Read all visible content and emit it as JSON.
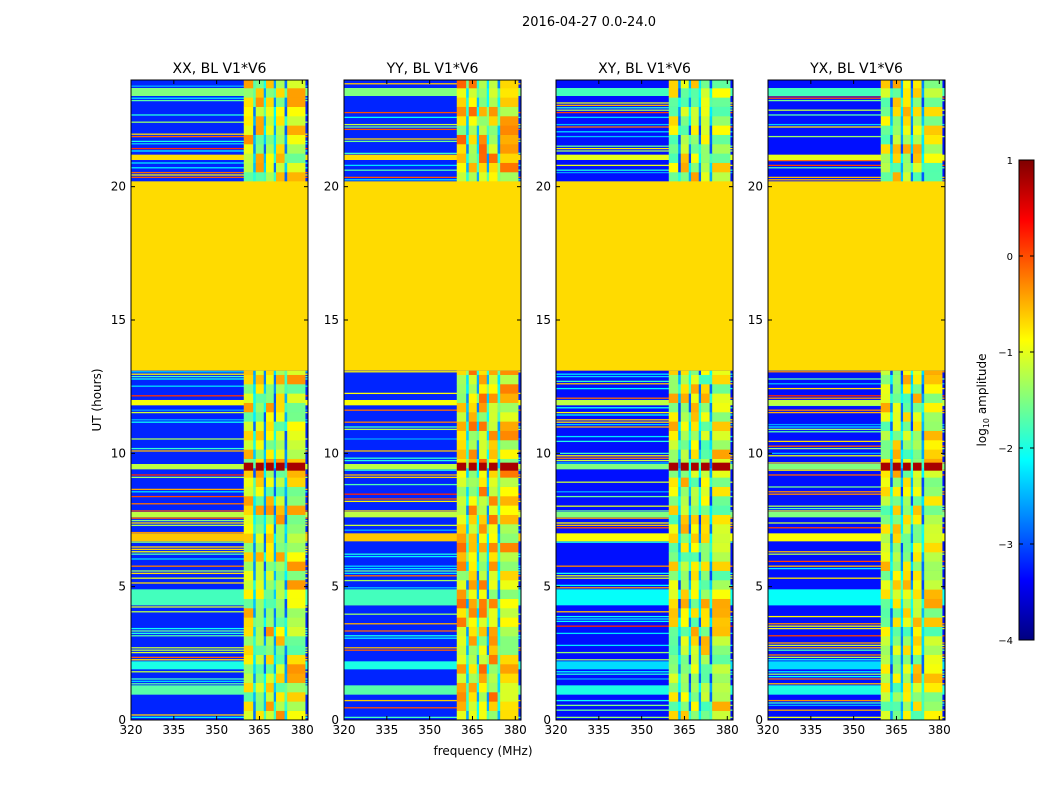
{
  "figure": {
    "suptitle": "2016-04-27 0.0-24.0",
    "colorbar": {
      "label": "log",
      "label_sub": "10",
      "label_suffix": " amplitude",
      "range": [
        -4,
        1
      ],
      "ticks": [
        1,
        0,
        -1,
        -2,
        -3,
        -4
      ],
      "tick_labels": [
        "1",
        "0",
        "−1",
        "−2",
        "−3",
        "−4"
      ],
      "colormap": "jet",
      "colormap_stops": [
        "#00007f",
        "#0000ff",
        "#0080ff",
        "#00ffff",
        "#80ff80",
        "#ffff00",
        "#ff8000",
        "#ff0000",
        "#7f0000"
      ]
    }
  },
  "chart_data": [
    {
      "type": "heatmap",
      "title": "XX, BL V1*V6",
      "xlabel": "",
      "ylabel": "UT (hours)",
      "xlim": [
        320,
        382
      ],
      "ylim": [
        0,
        24
      ],
      "xticks": [
        320,
        335,
        350,
        365,
        380
      ],
      "xtick_labels": [
        "320",
        "335",
        "350",
        "365",
        "380"
      ],
      "yticks": [
        0,
        5,
        10,
        15,
        20
      ],
      "ytick_labels": [
        "0",
        "5",
        "10",
        "15",
        "20"
      ],
      "masked_time_range": [
        13.1,
        20.2
      ],
      "masked_value": -0.7,
      "background_value": -3.2,
      "rfi_band_mhz": [
        359.5,
        368.5
      ],
      "rfi_band_value": -1.0,
      "strong_event_time": 9.5,
      "strong_event_value": 0.8
    },
    {
      "type": "heatmap",
      "title": "YY, BL V1*V6",
      "xlabel": "frequency (MHz)",
      "ylabel": "",
      "xlim": [
        320,
        382
      ],
      "ylim": [
        0,
        24
      ],
      "xticks": [
        320,
        335,
        350,
        365,
        380
      ],
      "xtick_labels": [
        "320",
        "335",
        "350",
        "365",
        "380"
      ],
      "yticks": [
        0,
        5,
        10,
        15,
        20
      ],
      "ytick_labels": [
        "0",
        "5",
        "10",
        "15",
        "20"
      ],
      "masked_time_range": [
        13.1,
        20.2
      ],
      "masked_value": -0.7,
      "background_value": -3.2,
      "rfi_band_mhz": [
        359.5,
        368.5
      ],
      "rfi_band_value": -0.8,
      "strong_event_time": 9.5,
      "strong_event_value": 0.8
    },
    {
      "type": "heatmap",
      "title": "XY, BL V1*V6",
      "xlabel": "",
      "ylabel": "",
      "xlim": [
        320,
        382
      ],
      "ylim": [
        0,
        24
      ],
      "xticks": [
        320,
        335,
        350,
        365,
        380
      ],
      "xtick_labels": [
        "320",
        "335",
        "350",
        "365",
        "380"
      ],
      "yticks": [
        0,
        5,
        10,
        15,
        20
      ],
      "ytick_labels": [
        "0",
        "5",
        "10",
        "15",
        "20"
      ],
      "masked_time_range": [
        13.1,
        20.2
      ],
      "masked_value": -0.7,
      "background_value": -3.3,
      "rfi_band_mhz": [
        359.5,
        368.5
      ],
      "rfi_band_value": -1.1,
      "strong_event_time": 9.5,
      "strong_event_value": 0.8
    },
    {
      "type": "heatmap",
      "title": "YX, BL V1*V6",
      "xlabel": "",
      "ylabel": "",
      "xlim": [
        320,
        382
      ],
      "ylim": [
        0,
        24
      ],
      "xticks": [
        320,
        335,
        350,
        365,
        380
      ],
      "xtick_labels": [
        "320",
        "335",
        "350",
        "365",
        "380"
      ],
      "yticks": [
        0,
        5,
        10,
        15,
        20
      ],
      "ytick_labels": [
        "0",
        "5",
        "10",
        "15",
        "20"
      ],
      "masked_time_range": [
        13.1,
        20.2
      ],
      "masked_value": -0.7,
      "background_value": -3.3,
      "rfi_band_mhz": [
        359.5,
        368.5
      ],
      "rfi_band_value": -1.1,
      "strong_event_time": 9.5,
      "strong_event_value": 0.8
    }
  ]
}
